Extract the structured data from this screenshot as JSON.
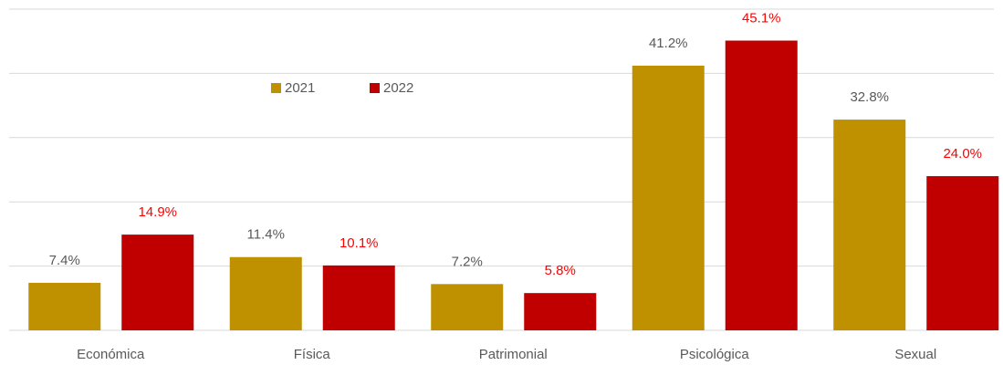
{
  "chart_data": {
    "type": "bar",
    "categories": [
      "Económica",
      "Física",
      "Patrimonial",
      "Psicológica",
      "Sexual"
    ],
    "series": [
      {
        "name": "2021",
        "color": "#bf9000",
        "label_color": "#595959",
        "values": [
          7.4,
          11.4,
          7.2,
          41.2,
          32.8
        ],
        "value_labels": [
          "7.4%",
          "11.4%",
          "7.2%",
          "41.2%",
          "32.8%"
        ]
      },
      {
        "name": "2022",
        "color": "#c00000",
        "label_color": "#ff0000",
        "values": [
          14.9,
          10.1,
          5.8,
          45.1,
          24.0
        ],
        "value_labels": [
          "14.9%",
          "10.1%",
          "5.8%",
          "45.1%",
          "24.0%"
        ]
      }
    ],
    "ylim": [
      0,
      50
    ],
    "yticks": [
      0,
      10,
      20,
      30,
      40,
      50
    ],
    "grid": true
  }
}
